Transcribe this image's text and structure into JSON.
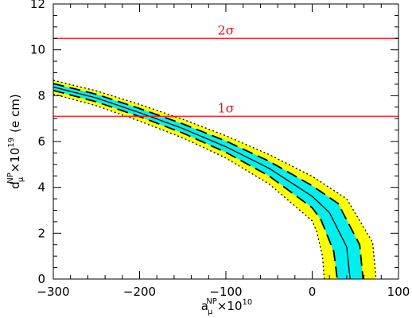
{
  "chart_data": {
    "type": "line",
    "xlabel": {
      "base": "a",
      "sup": "NP",
      "sub": "μ",
      "tail": "×10",
      "tail_sup": "10"
    },
    "ylabel": {
      "base": "d",
      "sup": "NP",
      "sub": "μ",
      "tail": "×10",
      "tail_sup": "19",
      "unit": "(e cm)"
    },
    "xlim": [
      -300,
      100
    ],
    "ylim": [
      0,
      12
    ],
    "xticks": [
      -300,
      -200,
      -100,
      0,
      100
    ],
    "yticks": [
      0,
      2,
      4,
      6,
      8,
      10,
      12
    ],
    "grid": false,
    "colors": {
      "outer_band": "#ffff00",
      "inner_band": "#00f0f0",
      "limit_line": "#e8101e",
      "curves": "#000000"
    },
    "hlines": [
      {
        "label": "2σ",
        "y": 10.5
      },
      {
        "label": "1σ",
        "y": 7.1
      }
    ],
    "bands": [
      {
        "style": "outer-yellow",
        "center_x": 44,
        "half_width_x": 30
      },
      {
        "style": "inner-cyan",
        "center_x": 44,
        "half_width_x": 15
      }
    ],
    "series": [
      {
        "style": "solid",
        "x": [
          -300,
          -250,
          -200,
          -150,
          -100,
          -50,
          0,
          20,
          40,
          44
        ],
        "y": [
          8.38,
          7.9,
          7.26,
          6.57,
          5.77,
          4.83,
          3.61,
          2.9,
          1.4,
          0
        ]
      },
      {
        "style": "dashed",
        "x": [
          -300,
          -250,
          -200,
          -150,
          -100,
          -50,
          0,
          30,
          55,
          59
        ],
        "y": [
          8.53,
          8.06,
          7.44,
          6.77,
          6.02,
          5.14,
          4.07,
          3.3,
          1.5,
          0
        ]
      },
      {
        "style": "dashed",
        "x": [
          -300,
          -250,
          -200,
          -150,
          -100,
          -50,
          0,
          10,
          25,
          29
        ],
        "y": [
          8.23,
          7.73,
          7.09,
          6.37,
          5.53,
          4.5,
          3.11,
          2.6,
          1.2,
          0
        ]
      },
      {
        "style": "dotted",
        "x": [
          -300,
          -250,
          -200,
          -150,
          -100,
          -50,
          0,
          40,
          70,
          74
        ],
        "y": [
          8.67,
          8.21,
          7.62,
          6.97,
          6.25,
          5.43,
          4.48,
          3.5,
          1.6,
          0
        ]
      },
      {
        "style": "dotted",
        "x": [
          -300,
          -250,
          -200,
          -150,
          -100,
          -50,
          0,
          5,
          12,
          14
        ],
        "y": [
          8.07,
          7.56,
          6.89,
          6.16,
          5.28,
          4.15,
          2.54,
          2.1,
          1.0,
          0
        ]
      }
    ]
  }
}
